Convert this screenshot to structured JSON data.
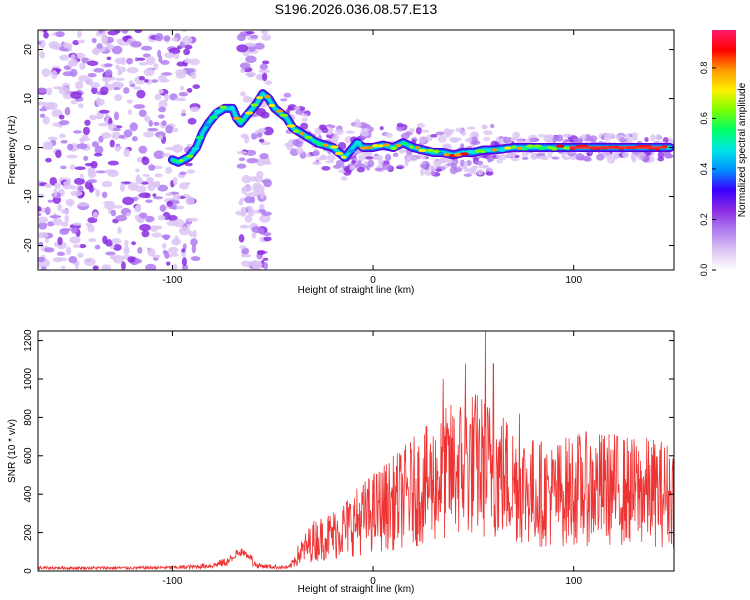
{
  "title": "S196.2026.036.08.57.E13",
  "chart_data": [
    {
      "type": "heatmap",
      "xlabel": "Height of straight line (km)",
      "ylabel": "Frequency (Hz)",
      "xlim": [
        -167,
        150
      ],
      "ylim": [
        -25,
        24
      ],
      "x_ticks": [
        -100,
        0,
        100
      ],
      "x_tick_labels": [
        "-100",
        "0",
        "100"
      ],
      "y_ticks": [
        -20,
        -10,
        0,
        10,
        20
      ],
      "y_tick_labels": [
        "-20",
        "-10",
        "0",
        "10",
        "20"
      ],
      "track": [
        [
          -100,
          -2.5
        ],
        [
          -97,
          -3
        ],
        [
          -92,
          -2
        ],
        [
          -88,
          0
        ],
        [
          -85,
          3
        ],
        [
          -82,
          5
        ],
        [
          -78,
          7
        ],
        [
          -74,
          8
        ],
        [
          -70,
          8
        ],
        [
          -68,
          6
        ],
        [
          -66,
          5
        ],
        [
          -62,
          7
        ],
        [
          -58,
          9
        ],
        [
          -55,
          11
        ],
        [
          -52,
          10
        ],
        [
          -49,
          8
        ],
        [
          -46,
          7
        ],
        [
          -43,
          6
        ],
        [
          -40,
          4
        ],
        [
          -36,
          3
        ],
        [
          -32,
          2
        ],
        [
          -28,
          1
        ],
        [
          -24,
          0.5
        ],
        [
          -20,
          0
        ],
        [
          -17,
          -1
        ],
        [
          -14,
          -2
        ],
        [
          -12,
          -1
        ],
        [
          -10,
          0
        ],
        [
          -8,
          1
        ],
        [
          -5,
          0
        ],
        [
          0,
          0
        ],
        [
          5,
          0.5
        ],
        [
          10,
          0
        ],
        [
          15,
          1
        ],
        [
          20,
          0
        ],
        [
          25,
          -0.5
        ],
        [
          30,
          -1
        ],
        [
          35,
          -1
        ],
        [
          40,
          -1.5
        ],
        [
          45,
          -1
        ],
        [
          50,
          -1
        ],
        [
          55,
          -0.5
        ],
        [
          60,
          -0.5
        ],
        [
          70,
          0
        ],
        [
          80,
          0
        ],
        [
          90,
          0
        ],
        [
          100,
          0
        ],
        [
          110,
          0
        ],
        [
          120,
          0
        ],
        [
          130,
          0
        ],
        [
          140,
          0
        ],
        [
          148,
          0
        ]
      ],
      "noise_regions": [
        {
          "x": [
            -167,
            -88
          ],
          "y": [
            -25,
            24
          ]
        },
        {
          "x": [
            -66,
            -52
          ],
          "y": [
            -25,
            24
          ]
        }
      ]
    },
    {
      "type": "line",
      "xlabel": "Height of straight line (km)",
      "ylabel": "SNR (10 * v/v)",
      "xlim": [
        -167,
        150
      ],
      "ylim": [
        0,
        1250
      ],
      "x_ticks": [
        -100,
        0,
        100
      ],
      "x_tick_labels": [
        "-100",
        "0",
        "100"
      ],
      "y_ticks": [
        0,
        200,
        400,
        600,
        800,
        1000,
        1200
      ],
      "y_tick_labels": [
        "0",
        "200",
        "400",
        "600",
        "800",
        "1000",
        "1200"
      ],
      "series_color": "#ee3333",
      "envelope": [
        [
          -167,
          22
        ],
        [
          -120,
          22
        ],
        [
          -100,
          25
        ],
        [
          -90,
          30
        ],
        [
          -80,
          40
        ],
        [
          -72,
          70
        ],
        [
          -66,
          110
        ],
        [
          -62,
          90
        ],
        [
          -58,
          40
        ],
        [
          -50,
          30
        ],
        [
          -42,
          25
        ],
        [
          -38,
          90
        ],
        [
          -30,
          190
        ],
        [
          -20,
          230
        ],
        [
          -10,
          300
        ],
        [
          0,
          370
        ],
        [
          10,
          430
        ],
        [
          20,
          500
        ],
        [
          30,
          560
        ],
        [
          40,
          640
        ],
        [
          50,
          680
        ],
        [
          60,
          640
        ],
        [
          70,
          560
        ],
        [
          80,
          500
        ],
        [
          90,
          480
        ],
        [
          100,
          520
        ],
        [
          110,
          520
        ],
        [
          120,
          520
        ],
        [
          130,
          500
        ],
        [
          140,
          500
        ],
        [
          150,
          480
        ]
      ],
      "peaks": [
        [
          -66,
          140
        ],
        [
          35,
          1000
        ],
        [
          46,
          1080
        ],
        [
          56,
          1250
        ],
        [
          60,
          1080
        ],
        [
          73,
          820
        ]
      ]
    }
  ],
  "colorbar": {
    "label": "Normalized spectral amplitude",
    "range": [
      0,
      0.95
    ],
    "ticks": [
      0.0,
      0.2,
      0.4,
      0.6,
      0.8
    ],
    "tick_labels": [
      "0.0",
      "0.2",
      "0.4",
      "0.6",
      "0.8"
    ],
    "stops": [
      "#ffffff",
      "#dcc4f4",
      "#b07cf0",
      "#8a2be2",
      "#3a00ff",
      "#0090ff",
      "#00e5e5",
      "#00ff66",
      "#7cff00",
      "#ffee00",
      "#ff9900",
      "#ff0000",
      "#ff1a6e"
    ]
  }
}
